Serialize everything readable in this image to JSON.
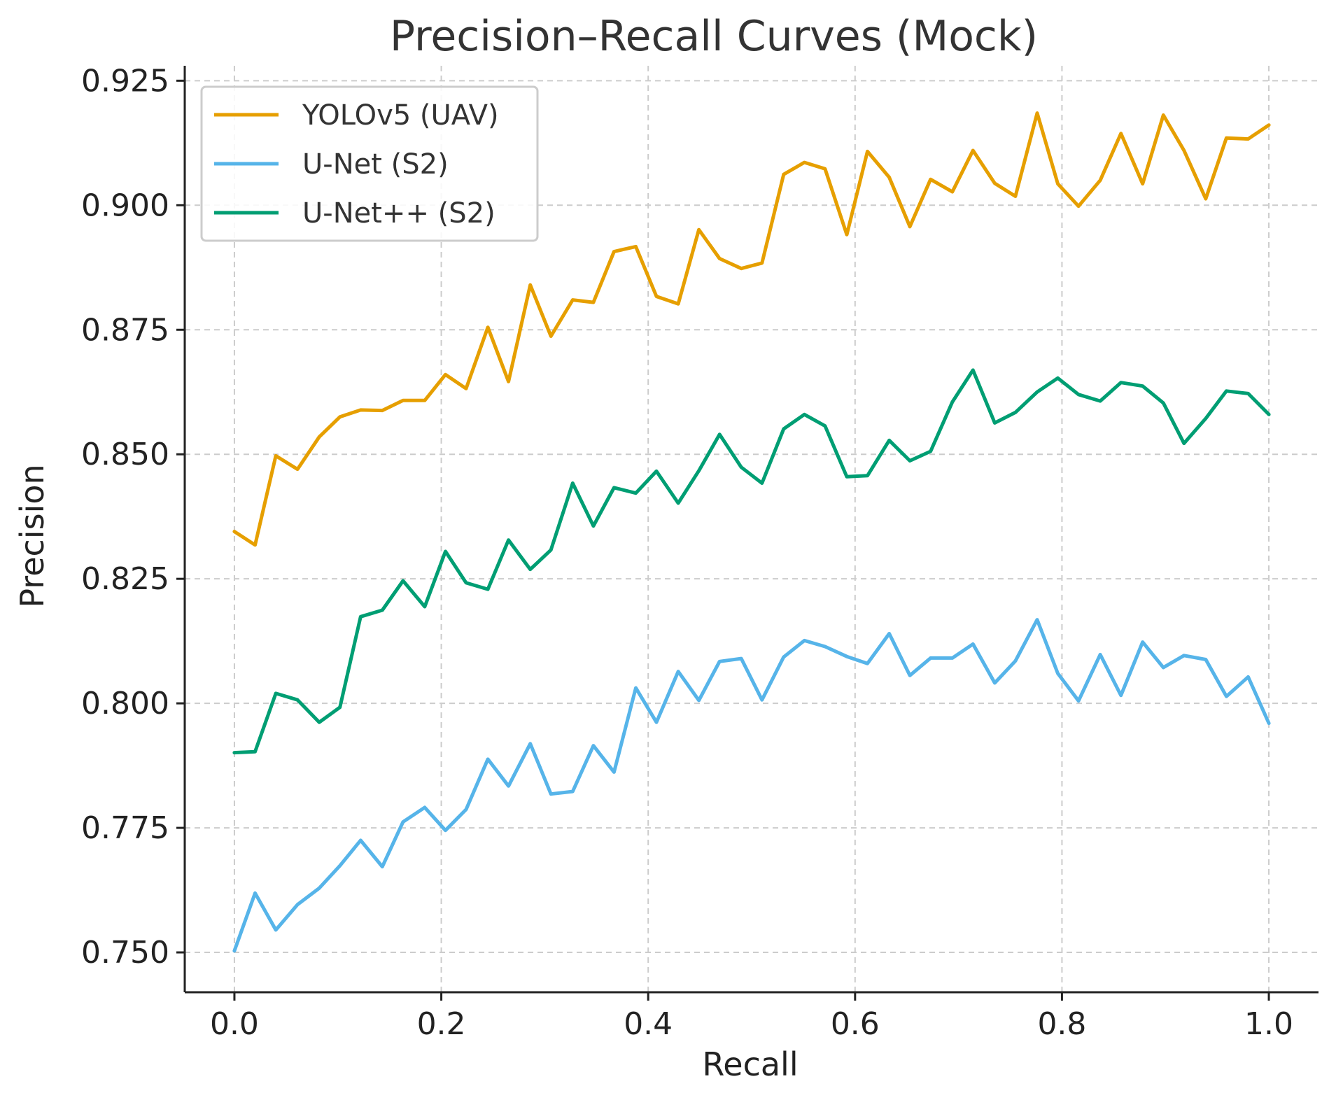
{
  "chart_data": {
    "type": "line",
    "title": "Precision–Recall Curves (Mock)",
    "xlabel": "Recall",
    "ylabel": "Precision",
    "xlim": [
      -0.048,
      1.048
    ],
    "ylim": [
      0.742,
      0.928
    ],
    "xticks": [
      0.0,
      0.2,
      0.4,
      0.6,
      0.8,
      1.0
    ],
    "xtick_labels": [
      "0.0",
      "0.2",
      "0.4",
      "0.6",
      "0.8",
      "1.0"
    ],
    "yticks": [
      0.75,
      0.775,
      0.8,
      0.825,
      0.85,
      0.875,
      0.9,
      0.925
    ],
    "ytick_labels": [
      "0.750",
      "0.775",
      "0.800",
      "0.825",
      "0.850",
      "0.875",
      "0.900",
      "0.925"
    ],
    "grid": true,
    "legend_position": "top-left",
    "x": [
      0.0,
      0.02,
      0.04,
      0.061,
      0.082,
      0.102,
      0.122,
      0.143,
      0.163,
      0.184,
      0.204,
      0.224,
      0.245,
      0.265,
      0.286,
      0.306,
      0.327,
      0.347,
      0.367,
      0.388,
      0.408,
      0.429,
      0.449,
      0.469,
      0.49,
      0.51,
      0.531,
      0.551,
      0.571,
      0.592,
      0.612,
      0.633,
      0.653,
      0.673,
      0.694,
      0.714,
      0.735,
      0.755,
      0.776,
      0.796,
      0.816,
      0.837,
      0.857,
      0.878,
      0.898,
      0.918,
      0.939,
      0.959,
      0.98,
      1.0
    ],
    "series": [
      {
        "name": "YOLOv5 (UAV)",
        "color": "#E69F00",
        "values": [
          0.8345,
          0.8318,
          0.8497,
          0.847,
          0.8535,
          0.8575,
          0.8589,
          0.8588,
          0.8608,
          0.8608,
          0.866,
          0.8632,
          0.8755,
          0.8646,
          0.884,
          0.8737,
          0.881,
          0.8805,
          0.8907,
          0.8917,
          0.8817,
          0.8802,
          0.8951,
          0.8893,
          0.8873,
          0.8884,
          0.9062,
          0.9086,
          0.9073,
          0.8941,
          0.9108,
          0.9056,
          0.8957,
          0.9052,
          0.9027,
          0.911,
          0.9044,
          0.9018,
          0.9185,
          0.9043,
          0.8998,
          0.905,
          0.9144,
          0.9043,
          0.9181,
          0.911,
          0.9013,
          0.9135,
          0.9133,
          0.9161
        ]
      },
      {
        "name": "U-Net (S2)",
        "color": "#56B4E9",
        "values": [
          0.7503,
          0.7619,
          0.7545,
          0.7596,
          0.7629,
          0.7674,
          0.7725,
          0.7672,
          0.7762,
          0.7791,
          0.7745,
          0.7787,
          0.7888,
          0.7834,
          0.7919,
          0.7818,
          0.7823,
          0.7915,
          0.7862,
          0.8031,
          0.7962,
          0.8064,
          0.8006,
          0.8084,
          0.809,
          0.8007,
          0.8093,
          0.8126,
          0.8114,
          0.8094,
          0.808,
          0.814,
          0.8056,
          0.8091,
          0.8091,
          0.8119,
          0.8041,
          0.8085,
          0.8168,
          0.806,
          0.8005,
          0.8098,
          0.8016,
          0.8123,
          0.8072,
          0.8096,
          0.8088,
          0.8014,
          0.8053,
          0.796
        ]
      },
      {
        "name": "U-Net++ (S2)",
        "color": "#009E73",
        "values": [
          0.7901,
          0.7903,
          0.802,
          0.8007,
          0.7962,
          0.7992,
          0.8174,
          0.8187,
          0.8246,
          0.8194,
          0.8305,
          0.8242,
          0.8229,
          0.8328,
          0.8269,
          0.8308,
          0.8442,
          0.8356,
          0.8433,
          0.8422,
          0.8466,
          0.8402,
          0.8467,
          0.854,
          0.8474,
          0.8442,
          0.8551,
          0.858,
          0.8557,
          0.8455,
          0.8457,
          0.8528,
          0.8487,
          0.8506,
          0.8605,
          0.8669,
          0.8563,
          0.8584,
          0.8625,
          0.8653,
          0.862,
          0.8607,
          0.8644,
          0.8637,
          0.8603,
          0.8522,
          0.8572,
          0.8627,
          0.8622,
          0.858
        ]
      }
    ]
  }
}
